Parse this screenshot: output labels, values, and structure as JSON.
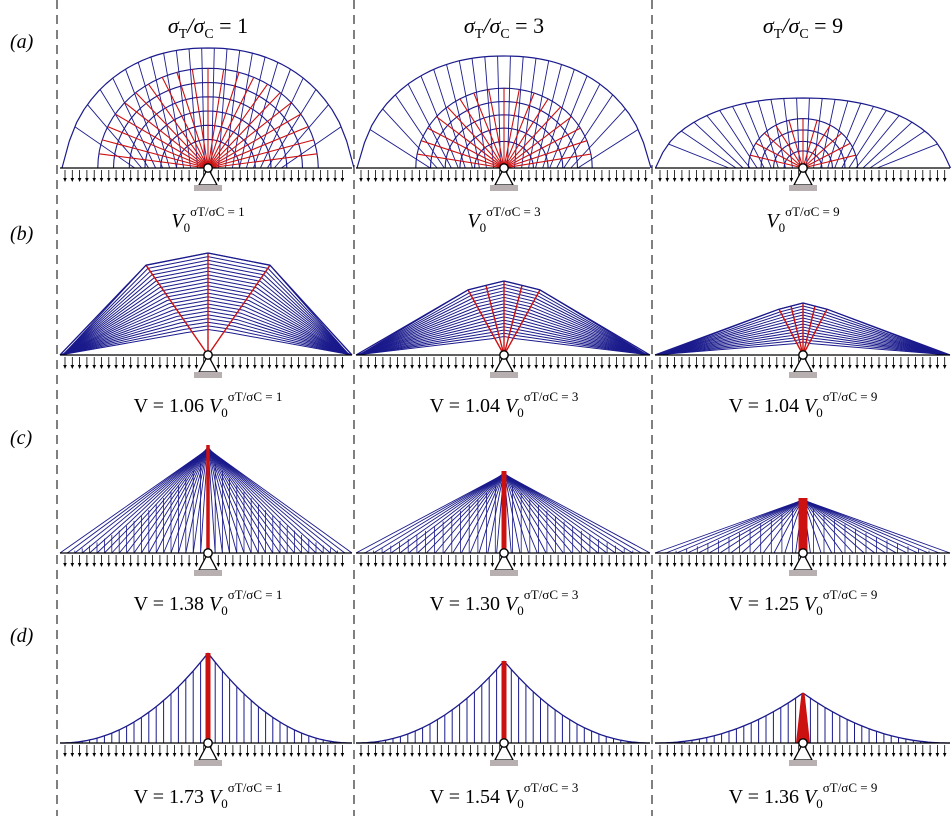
{
  "column_headers": [
    {
      "label": "σ",
      "sub1": "T",
      "slash": "/σ",
      "sub2": "C",
      "eq": " = 1"
    },
    {
      "label": "σ",
      "sub1": "T",
      "slash": "/σ",
      "sub2": "C",
      "eq": " = 3"
    },
    {
      "label": "σ",
      "sub1": "T",
      "slash": "/σ",
      "sub2": "C",
      "eq": " = 9"
    }
  ],
  "rows": [
    {
      "label": "(a)",
      "captions": [
        {
          "prefix": "",
          "base": "V",
          "sub": "0",
          "sup": "σT/σC = 1"
        },
        {
          "prefix": "",
          "base": "V",
          "sub": "0",
          "sup": "σT/σC = 3"
        },
        {
          "prefix": "",
          "base": "V",
          "sub": "0",
          "sup": "σT/σC = 9"
        }
      ]
    },
    {
      "label": "(b)",
      "captions": [
        {
          "prefix": "V = 1.06 ",
          "base": "V",
          "sub": "0",
          "sup": "σT/σC = 1"
        },
        {
          "prefix": "V = 1.04 ",
          "base": "V",
          "sub": "0",
          "sup": "σT/σC = 3"
        },
        {
          "prefix": "V = 1.04 ",
          "base": "V",
          "sub": "0",
          "sup": "σT/σC = 9"
        }
      ]
    },
    {
      "label": "(c)",
      "captions": [
        {
          "prefix": "V = 1.38 ",
          "base": "V",
          "sub": "0",
          "sup": "σT/σC = 1"
        },
        {
          "prefix": "V = 1.30 ",
          "base": "V",
          "sub": "0",
          "sup": "σT/σC = 3"
        },
        {
          "prefix": "V = 1.25 ",
          "base": "V",
          "sub": "0",
          "sup": "σT/σC = 9"
        }
      ]
    },
    {
      "label": "(d)",
      "captions": [
        {
          "prefix": "V = 1.73 ",
          "base": "V",
          "sub": "0",
          "sup": "σT/σC = 1"
        },
        {
          "prefix": "V = 1.54 ",
          "base": "V",
          "sub": "0",
          "sup": "σT/σC = 3"
        },
        {
          "prefix": "V = 1.36 ",
          "base": "V",
          "sub": "0",
          "sup": "σT/σC = 9"
        }
      ]
    }
  ],
  "colors": {
    "tension": "#1a1a8c",
    "compression": "#cc1111",
    "support": "#b8b0b0",
    "load": "#000000"
  }
}
